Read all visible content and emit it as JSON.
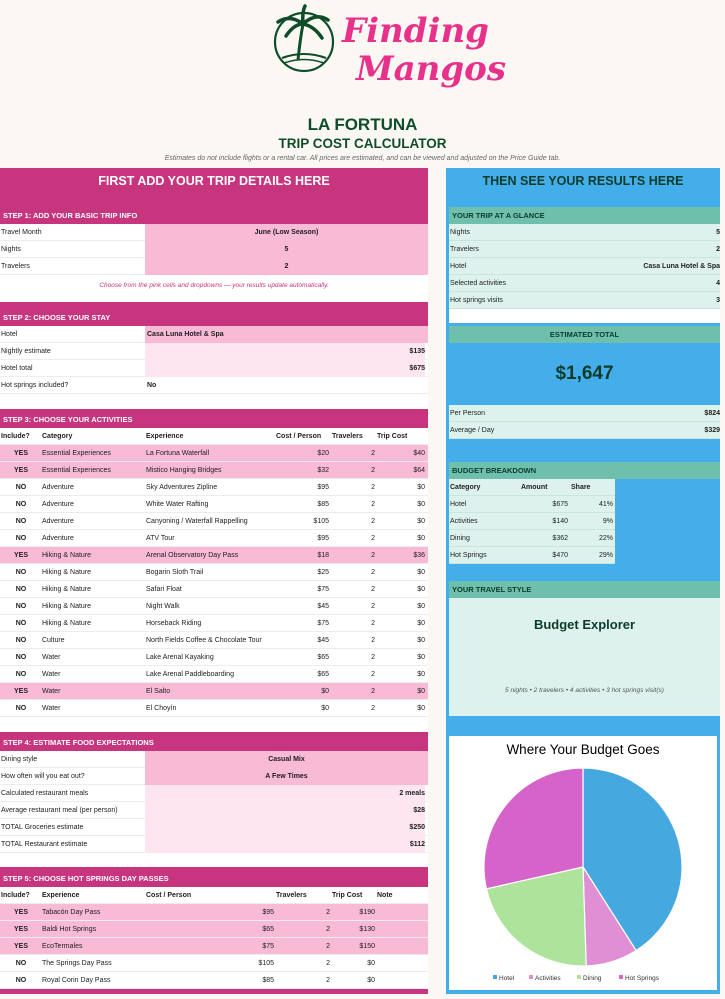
{
  "brand": {
    "name": "Finding Mangos",
    "line1": "Finding",
    "line2": "Mangos"
  },
  "title": "LA FORTUNA",
  "subtitle": "TRIP COST CALCULATOR",
  "note": "Estimates do not include flights or a rental car. All prices are estimated, and can be viewed and adjusted on the Price Guide tab.",
  "colors": {
    "pink": "#c8357f",
    "light_pink": "#f8bad5",
    "blue": "#44aeea",
    "mint": "#ddf2ec",
    "teal": "#6fbfad",
    "dark_green": "#0f4d2a"
  },
  "left_header": "FIRST ADD YOUR TRIP DETAILS HERE",
  "right_header": "THEN SEE YOUR RESULTS HERE",
  "step1": {
    "title": "STEP 1: ADD YOUR BASIC TRIP INFO",
    "rows": [
      {
        "label": "Travel Month",
        "value": "June (Low Season)"
      },
      {
        "label": "Nights",
        "value": "5"
      },
      {
        "label": "Travelers",
        "value": "2"
      }
    ],
    "hint": "Choose from the pink cells and dropdowns — your results update automatically."
  },
  "step2": {
    "title": "STEP 2: CHOOSE YOUR STAY",
    "rows": [
      {
        "label": "Hotel",
        "value": "Casa Luna Hotel & Spa"
      },
      {
        "label": "Nightly estimate",
        "value": "$135"
      },
      {
        "label": "Hotel total",
        "value": "$675"
      },
      {
        "label": "Hot springs included?",
        "value": "No"
      }
    ]
  },
  "step3": {
    "title": "STEP 3: CHOOSE YOUR ACTIVITIES",
    "headers": [
      "Include?",
      "Category",
      "Experience",
      "Cost / Person",
      "Travelers",
      "Trip Cost"
    ],
    "rows": [
      {
        "include": "YES",
        "category": "Essential Experiences",
        "experience": "La Fortuna Waterfall",
        "cost": "$20",
        "travelers": "2",
        "trip": "$40"
      },
      {
        "include": "YES",
        "category": "Essential Experiences",
        "experience": "Mistico Hanging Bridges",
        "cost": "$32",
        "travelers": "2",
        "trip": "$64"
      },
      {
        "include": "NO",
        "category": "Adventure",
        "experience": "Sky Adventures Zipline",
        "cost": "$95",
        "travelers": "2",
        "trip": "$0"
      },
      {
        "include": "NO",
        "category": "Adventure",
        "experience": "White Water Rafting",
        "cost": "$85",
        "travelers": "2",
        "trip": "$0"
      },
      {
        "include": "NO",
        "category": "Adventure",
        "experience": "Canyoning / Waterfall Rappelling",
        "cost": "$105",
        "travelers": "2",
        "trip": "$0"
      },
      {
        "include": "NO",
        "category": "Adventure",
        "experience": "ATV Tour",
        "cost": "$95",
        "travelers": "2",
        "trip": "$0"
      },
      {
        "include": "YES",
        "category": "Hiking & Nature",
        "experience": "Arenal Observatory Day Pass",
        "cost": "$18",
        "travelers": "2",
        "trip": "$36"
      },
      {
        "include": "NO",
        "category": "Hiking & Nature",
        "experience": "Bogarin Sloth Trail",
        "cost": "$25",
        "travelers": "2",
        "trip": "$0"
      },
      {
        "include": "NO",
        "category": "Hiking & Nature",
        "experience": "Safari Float",
        "cost": "$75",
        "travelers": "2",
        "trip": "$0"
      },
      {
        "include": "NO",
        "category": "Hiking & Nature",
        "experience": "Night Walk",
        "cost": "$45",
        "travelers": "2",
        "trip": "$0"
      },
      {
        "include": "NO",
        "category": "Hiking & Nature",
        "experience": "Horseback Riding",
        "cost": "$75",
        "travelers": "2",
        "trip": "$0"
      },
      {
        "include": "NO",
        "category": "Culture",
        "experience": "North Fields Coffee & Chocolate Tour",
        "cost": "$45",
        "travelers": "2",
        "trip": "$0"
      },
      {
        "include": "NO",
        "category": "Water",
        "experience": "Lake Arenal Kayaking",
        "cost": "$65",
        "travelers": "2",
        "trip": "$0"
      },
      {
        "include": "NO",
        "category": "Water",
        "experience": "Lake Arenal Paddleboarding",
        "cost": "$65",
        "travelers": "2",
        "trip": "$0"
      },
      {
        "include": "YES",
        "category": "Water",
        "experience": "El Salto",
        "cost": "$0",
        "travelers": "2",
        "trip": "$0"
      },
      {
        "include": "NO",
        "category": "Water",
        "experience": "El Choyín",
        "cost": "$0",
        "travelers": "2",
        "trip": "$0"
      }
    ]
  },
  "step4": {
    "title": "STEP 4: ESTIMATE FOOD EXPECTATIONS",
    "rows": [
      {
        "label": "Dining style",
        "value": "Casual Mix",
        "kind": "select"
      },
      {
        "label": "How often will you eat out?",
        "value": "A Few Times",
        "kind": "select"
      },
      {
        "label": "Calculated restaurant meals",
        "value": "2 meals",
        "kind": "calc"
      },
      {
        "label": "Average restaurant meal (per person)",
        "value": "$28",
        "kind": "calc"
      },
      {
        "label": "TOTAL Groceries estimate",
        "value": "$250",
        "kind": "calc"
      },
      {
        "label": "TOTAL Restaurant estimate",
        "value": "$112",
        "kind": "calc"
      }
    ]
  },
  "step5": {
    "title": "STEP 5: CHOOSE HOT SPRINGS DAY PASSES",
    "headers": [
      "Include?",
      "Experience",
      "Cost / Person",
      "Travelers",
      "Trip Cost",
      "Note"
    ],
    "rows": [
      {
        "include": "YES",
        "experience": "Tabacón Day Pass",
        "cost": "$95",
        "travelers": "2",
        "trip": "$190"
      },
      {
        "include": "YES",
        "experience": "Baldi Hot Springs",
        "cost": "$65",
        "travelers": "2",
        "trip": "$130"
      },
      {
        "include": "YES",
        "experience": "EcoTermales",
        "cost": "$75",
        "travelers": "2",
        "trip": "$150"
      },
      {
        "include": "NO",
        "experience": "The Springs Day Pass",
        "cost": "$105",
        "travelers": "2",
        "trip": "$0"
      },
      {
        "include": "NO",
        "experience": "Royal Corin Day Pass",
        "cost": "$85",
        "travelers": "2",
        "trip": "$0"
      }
    ]
  },
  "glance": {
    "title": "YOUR TRIP AT A GLANCE",
    "rows": [
      {
        "label": "Nights",
        "value": "5"
      },
      {
        "label": "Travelers",
        "value": "2"
      },
      {
        "label": "Hotel",
        "value": "Casa Luna Hotel & Spa"
      },
      {
        "label": "Selected activities",
        "value": "4"
      },
      {
        "label": "Hot springs visits",
        "value": "3"
      }
    ]
  },
  "estimate": {
    "title": "ESTIMATED TOTAL",
    "total": "$1,647",
    "rows": [
      {
        "label": "Per Person",
        "value": "$824"
      },
      {
        "label": "Average / Day",
        "value": "$329"
      }
    ]
  },
  "breakdown": {
    "title": "BUDGET BREAKDOWN",
    "headers": [
      "Category",
      "Amount",
      "Share"
    ],
    "rows": [
      {
        "category": "Hotel",
        "amount": "$675",
        "share": "41%"
      },
      {
        "category": "Activities",
        "amount": "$140",
        "share": "9%"
      },
      {
        "category": "Dining",
        "amount": "$362",
        "share": "22%"
      },
      {
        "category": "Hot Springs",
        "amount": "$470",
        "share": "29%"
      }
    ]
  },
  "style": {
    "title": "YOUR TRAVEL STYLE",
    "name": "Budget Explorer",
    "summary": "5 nights • 2 travelers • 4 activities • 3 hot springs visit(s)"
  },
  "chart_data": {
    "type": "pie",
    "title": "Where Your Budget Goes",
    "categories": [
      "Hotel",
      "Activities",
      "Dining",
      "Hot Springs"
    ],
    "values": [
      675,
      140,
      362,
      470
    ],
    "colors": [
      "#45a9e0",
      "#e08fd4",
      "#ade39a",
      "#d563c9"
    ],
    "legend": "bottom"
  }
}
